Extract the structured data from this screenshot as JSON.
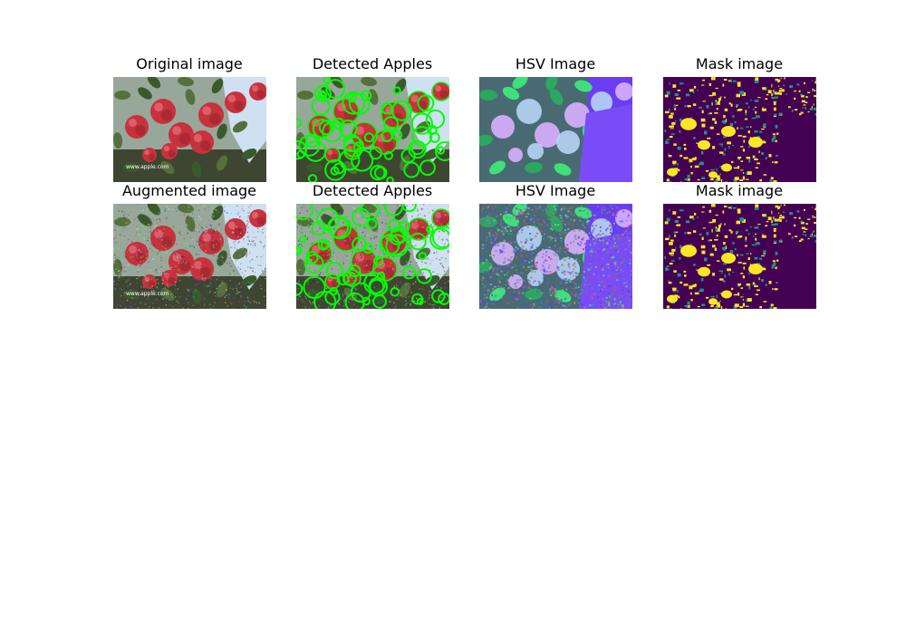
{
  "figure": {
    "rows": [
      {
        "panels": [
          {
            "id": "r1c1",
            "title": "Original image",
            "kind": "photo",
            "watermark": "www.apple.com"
          },
          {
            "id": "r1c2",
            "title": "Detected Apples",
            "kind": "detected",
            "watermark": ""
          },
          {
            "id": "r1c3",
            "title": "HSV Image",
            "kind": "hsv",
            "watermark": ""
          },
          {
            "id": "r1c4",
            "title": "Mask image",
            "kind": "mask",
            "watermark": ""
          }
        ]
      },
      {
        "panels": [
          {
            "id": "r2c1",
            "title": "Augmented image",
            "kind": "photo-noisy",
            "watermark": "www.apple.com"
          },
          {
            "id": "r2c2",
            "title": "Detected Apples",
            "kind": "detected-noisy",
            "watermark": ""
          },
          {
            "id": "r2c3",
            "title": "HSV Image",
            "kind": "hsv-noisy",
            "watermark": ""
          },
          {
            "id": "r2c4",
            "title": "Mask image",
            "kind": "mask",
            "watermark": ""
          }
        ]
      }
    ],
    "colors": {
      "apple": "#c8323c",
      "apple_dark": "#8e1f28",
      "leaf": "#3b5a2c",
      "sky": "#cfe0f2",
      "detect_circle": "#00ff00",
      "hsv_purple": "#6a3df0",
      "hsv_green": "#3ee07a",
      "mask_bg": "#440154",
      "mask_fg": "#fde725",
      "mask_mid": "#21918c"
    }
  }
}
